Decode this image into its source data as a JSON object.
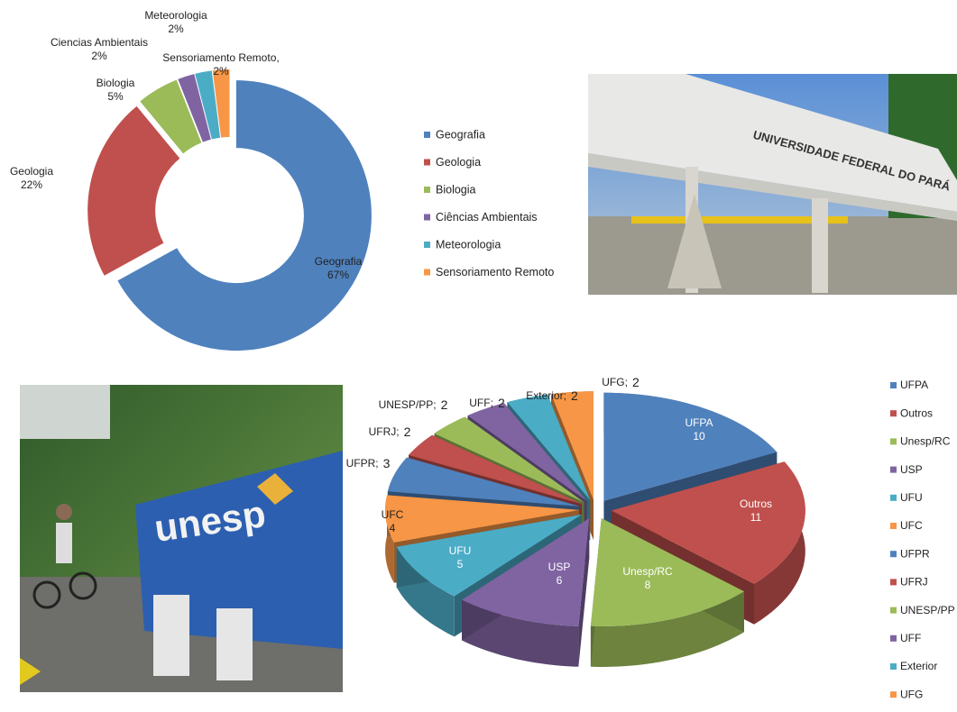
{
  "chart_data": [
    {
      "type": "donut",
      "categories": [
        "Geografia",
        "Geologia",
        "Biologia",
        "Ciências Ambientais",
        "Meteorologia",
        "Sensoriamento Remoto"
      ],
      "label_names": [
        "Geografia",
        "Geologia",
        "Biologia",
        "Ciencias Ambientais",
        "Meteorologia",
        "Sensoriamento Remoto,"
      ],
      "values": [
        67,
        22,
        5,
        2,
        2,
        2
      ],
      "value_labels": [
        "67%",
        "22%",
        "5%",
        "2%",
        "2%",
        "2%"
      ],
      "colors": [
        "#4f81bd",
        "#c0504d",
        "#9bbb59",
        "#8064a2",
        "#4bacc6",
        "#f79646"
      ],
      "legend": "right"
    },
    {
      "type": "pie3d",
      "categories": [
        "UFPA",
        "Outros",
        "Unesp/RC",
        "USP",
        "UFU",
        "UFC",
        "UFPR",
        "UFRJ",
        "UNESP/PP",
        "UFF",
        "Exterior",
        "UFG"
      ],
      "values": [
        10,
        11,
        8,
        6,
        5,
        4,
        3,
        2,
        2,
        2,
        2,
        2
      ],
      "label_separator": ";",
      "colors": [
        "#4f81bd",
        "#c0504d",
        "#9bbb59",
        "#8064a2",
        "#4bacc6",
        "#f79646",
        "#4f81bd",
        "#c0504d",
        "#9bbb59",
        "#8064a2",
        "#4bacc6",
        "#f79646"
      ],
      "legend": "right"
    }
  ],
  "photos": [
    {
      "text": "UNIVERSIDADE FEDERAL DO PARÁ"
    },
    {
      "text": "unesp"
    }
  ]
}
